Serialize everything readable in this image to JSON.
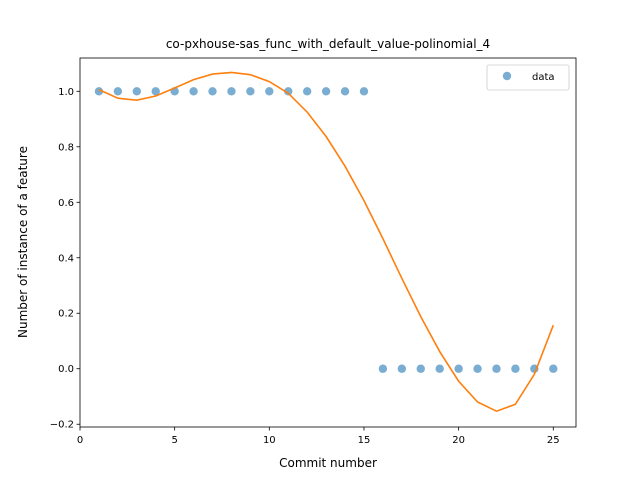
{
  "chart_data": {
    "type": "scatter",
    "title": "co-pxhouse-sas_func_with_default_value-polinomial_4",
    "xlabel": "Commit number",
    "ylabel": "Number of instance of a feature",
    "xlim": [
      0,
      26.2
    ],
    "ylim": [
      -0.21,
      1.12
    ],
    "xticks": [
      0,
      5,
      10,
      15,
      20,
      25
    ],
    "xtick_labels": [
      "0",
      "5",
      "10",
      "15",
      "20",
      "25"
    ],
    "yticks": [
      -0.2,
      0.0,
      0.2,
      0.4,
      0.6,
      0.8,
      1.0
    ],
    "ytick_labels": [
      "−0.2",
      "0.0",
      "0.2",
      "0.4",
      "0.6",
      "0.8",
      "1.0"
    ],
    "legend": {
      "position": "top-right",
      "entries": [
        "data"
      ]
    },
    "grid": false,
    "series": [
      {
        "name": "data",
        "kind": "scatter",
        "color": "#1f77b4",
        "x": [
          1,
          2,
          3,
          4,
          5,
          6,
          7,
          8,
          9,
          10,
          11,
          12,
          13,
          14,
          15,
          16,
          17,
          18,
          19,
          20,
          21,
          22,
          23,
          24,
          25
        ],
        "y": [
          1,
          1,
          1,
          1,
          1,
          1,
          1,
          1,
          1,
          1,
          1,
          1,
          1,
          1,
          1,
          0,
          0,
          0,
          0,
          0,
          0,
          0,
          0,
          0,
          0
        ]
      },
      {
        "kind": "line",
        "color": "#ff7f0e",
        "x": [
          1,
          2,
          3,
          4,
          5,
          6,
          7,
          8,
          9,
          10,
          11,
          12,
          13,
          14,
          15,
          16,
          17,
          18,
          19,
          20,
          21,
          22,
          23,
          24,
          25
        ],
        "y": [
          1.006,
          0.975,
          0.968,
          0.983,
          1.012,
          1.042,
          1.062,
          1.068,
          1.06,
          1.035,
          0.993,
          0.925,
          0.837,
          0.73,
          0.606,
          0.469,
          0.326,
          0.188,
          0.062,
          -0.045,
          -0.12,
          -0.153,
          -0.128,
          -0.02,
          0.157
        ]
      }
    ]
  }
}
